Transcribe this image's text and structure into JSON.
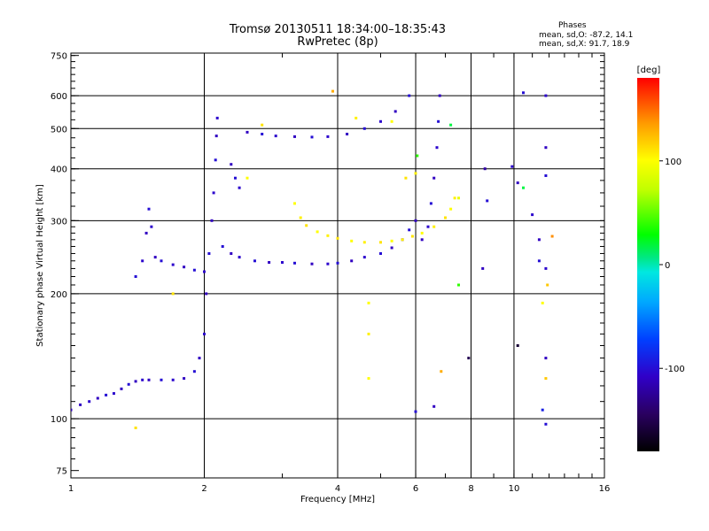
{
  "header": {
    "title_line1": "Tromsø 20130511 18:34:00–18:35:43",
    "title_line2": "RwPretec (8p)"
  },
  "phase_box": {
    "heading": "Phases",
    "line_o": "mean, sd,O:  -87.2, 14.1",
    "line_x": "mean, sd,X:  91.7, 18.9"
  },
  "chart_data": {
    "type": "scatter",
    "xlabel": "Frequency [MHz]",
    "ylabel": "Stationary phase Virtual Height [km]",
    "x_scale": "log2",
    "y_scale": "log",
    "xlim": [
      1,
      16
    ],
    "ylim": [
      72,
      760
    ],
    "x_ticks": [
      1,
      2,
      4,
      6,
      8,
      10,
      16
    ],
    "x_tick_labels": [
      "1",
      "2",
      "4",
      "6",
      "8",
      "10",
      "16"
    ],
    "x_grid": [
      2,
      4,
      6,
      8,
      10
    ],
    "y_ticks": [
      75,
      100,
      200,
      300,
      400,
      500,
      600,
      750
    ],
    "y_tick_labels": [
      "75",
      "100",
      "200",
      "300",
      "400",
      "500",
      "600",
      "750"
    ],
    "y_grid": [
      100,
      200,
      300,
      400,
      500,
      600
    ],
    "colorbar": {
      "label": "[deg]",
      "range": [
        -180,
        180
      ],
      "ticks": [
        100,
        0,
        -100
      ],
      "tick_labels": [
        "100",
        "0",
        "-100"
      ]
    },
    "series": [
      {
        "points": [
          [
            1.0,
            105,
            -115
          ],
          [
            1.05,
            108,
            -110
          ],
          [
            1.1,
            110,
            -105
          ],
          [
            1.15,
            112,
            -110
          ],
          [
            1.2,
            114,
            -100
          ],
          [
            1.25,
            115,
            -105
          ],
          [
            1.3,
            118,
            -110
          ],
          [
            1.35,
            121,
            -100
          ],
          [
            1.4,
            123,
            -110
          ],
          [
            1.45,
            124,
            -105
          ],
          [
            1.5,
            124,
            -110
          ],
          [
            1.6,
            124,
            -100
          ],
          [
            1.7,
            124,
            -105
          ],
          [
            1.8,
            125,
            -110
          ],
          [
            1.9,
            130,
            -100
          ],
          [
            1.95,
            140,
            -110
          ],
          [
            2.0,
            160,
            -105
          ],
          [
            2.02,
            200,
            -110
          ],
          [
            2.05,
            250,
            -100
          ],
          [
            2.08,
            300,
            -110
          ],
          [
            2.1,
            350,
            -105
          ],
          [
            2.12,
            420,
            -100
          ],
          [
            2.13,
            480,
            -110
          ],
          [
            2.14,
            530,
            -105
          ],
          [
            2.2,
            260,
            -100
          ],
          [
            2.3,
            250,
            -110
          ],
          [
            2.4,
            245,
            -105
          ],
          [
            2.6,
            240,
            -100
          ],
          [
            2.8,
            238,
            -110
          ],
          [
            3.0,
            238,
            -105
          ],
          [
            3.2,
            237,
            -100
          ],
          [
            3.5,
            236,
            -110
          ],
          [
            3.8,
            236,
            -105
          ],
          [
            4.0,
            237,
            -100
          ],
          [
            4.3,
            240,
            -110
          ],
          [
            4.6,
            245,
            -105
          ],
          [
            5.0,
            250,
            -100
          ],
          [
            5.3,
            258,
            -110
          ],
          [
            5.6,
            270,
            -105
          ],
          [
            5.8,
            285,
            -100
          ],
          [
            6.0,
            300,
            -110
          ],
          [
            1.4,
            220,
            -100
          ],
          [
            1.45,
            240,
            -105
          ],
          [
            1.48,
            280,
            -110
          ],
          [
            1.5,
            320,
            -100
          ],
          [
            1.52,
            290,
            -105
          ],
          [
            1.55,
            245,
            -110
          ],
          [
            1.6,
            240,
            -100
          ],
          [
            1.7,
            235,
            -105
          ],
          [
            1.8,
            232,
            -110
          ],
          [
            1.9,
            228,
            -100
          ],
          [
            2.0,
            226,
            -105
          ],
          [
            2.3,
            410,
            -110
          ],
          [
            2.35,
            380,
            -100
          ],
          [
            2.4,
            360,
            -105
          ],
          [
            2.5,
            490,
            -110
          ],
          [
            2.7,
            485,
            -100
          ],
          [
            2.9,
            480,
            -105
          ],
          [
            3.2,
            478,
            -110
          ],
          [
            3.5,
            477,
            -100
          ],
          [
            3.8,
            478,
            -105
          ],
          [
            4.2,
            485,
            -110
          ],
          [
            4.6,
            500,
            -100
          ],
          [
            5.0,
            520,
            -105
          ],
          [
            5.4,
            550,
            -110
          ],
          [
            5.8,
            600,
            -100
          ],
          [
            6.2,
            270,
            -110
          ],
          [
            6.4,
            290,
            -105
          ],
          [
            6.5,
            330,
            -100
          ],
          [
            6.6,
            380,
            -110
          ],
          [
            6.7,
            450,
            -105
          ],
          [
            6.75,
            520,
            -100
          ],
          [
            6.8,
            600,
            -110
          ]
        ]
      },
      {
        "points": [
          [
            3.2,
            330,
            100
          ],
          [
            3.3,
            305,
            105
          ],
          [
            3.4,
            292,
            110
          ],
          [
            3.6,
            282,
            100
          ],
          [
            3.8,
            276,
            105
          ],
          [
            4.0,
            272,
            110
          ],
          [
            4.3,
            268,
            100
          ],
          [
            4.6,
            266,
            105
          ],
          [
            5.0,
            266,
            110
          ],
          [
            5.3,
            268,
            100
          ],
          [
            5.6,
            270,
            105
          ],
          [
            5.9,
            275,
            110
          ],
          [
            6.2,
            280,
            100
          ],
          [
            6.6,
            290,
            105
          ],
          [
            7.0,
            305,
            110
          ],
          [
            7.2,
            320,
            100
          ],
          [
            7.35,
            340,
            105
          ],
          [
            2.5,
            380,
            100
          ],
          [
            2.7,
            510,
            110
          ],
          [
            4.4,
            530,
            105
          ],
          [
            5.3,
            520,
            100
          ],
          [
            5.7,
            380,
            110
          ],
          [
            6.0,
            390,
            105
          ],
          [
            3.9,
            615,
            130
          ],
          [
            1.7,
            200,
            110
          ],
          [
            4.7,
            190,
            100
          ],
          [
            4.7,
            160,
            105
          ],
          [
            1.4,
            95,
            110
          ],
          [
            4.7,
            125,
            100
          ],
          [
            7.5,
            340,
            90
          ],
          [
            7.5,
            210,
            40
          ]
        ]
      },
      {
        "points": [
          [
            8.5,
            230,
            -110
          ],
          [
            8.7,
            335,
            -100
          ],
          [
            9.9,
            405,
            -105
          ],
          [
            10.2,
            370,
            -110
          ],
          [
            10.5,
            610,
            -100
          ],
          [
            11.0,
            310,
            -105
          ],
          [
            11.4,
            270,
            -110
          ],
          [
            11.4,
            240,
            -100
          ],
          [
            11.8,
            600,
            -105
          ],
          [
            11.8,
            450,
            -110
          ],
          [
            11.8,
            385,
            -100
          ],
          [
            11.8,
            230,
            -105
          ],
          [
            11.8,
            140,
            -110
          ],
          [
            11.8,
            97,
            -100
          ],
          [
            7.9,
            140,
            -150
          ],
          [
            10.2,
            150,
            -160
          ],
          [
            8.6,
            400,
            -120
          ],
          [
            6.0,
            104,
            -100
          ],
          [
            6.6,
            107,
            -110
          ],
          [
            11.6,
            105,
            -90
          ]
        ]
      },
      {
        "points": [
          [
            6.05,
            430,
            40
          ],
          [
            7.2,
            510,
            20
          ],
          [
            10.5,
            360,
            20
          ],
          [
            12.2,
            275,
            140
          ],
          [
            11.9,
            210,
            120
          ],
          [
            11.6,
            190,
            100
          ],
          [
            11.8,
            125,
            120
          ],
          [
            6.85,
            130,
            130
          ]
        ]
      }
    ]
  }
}
